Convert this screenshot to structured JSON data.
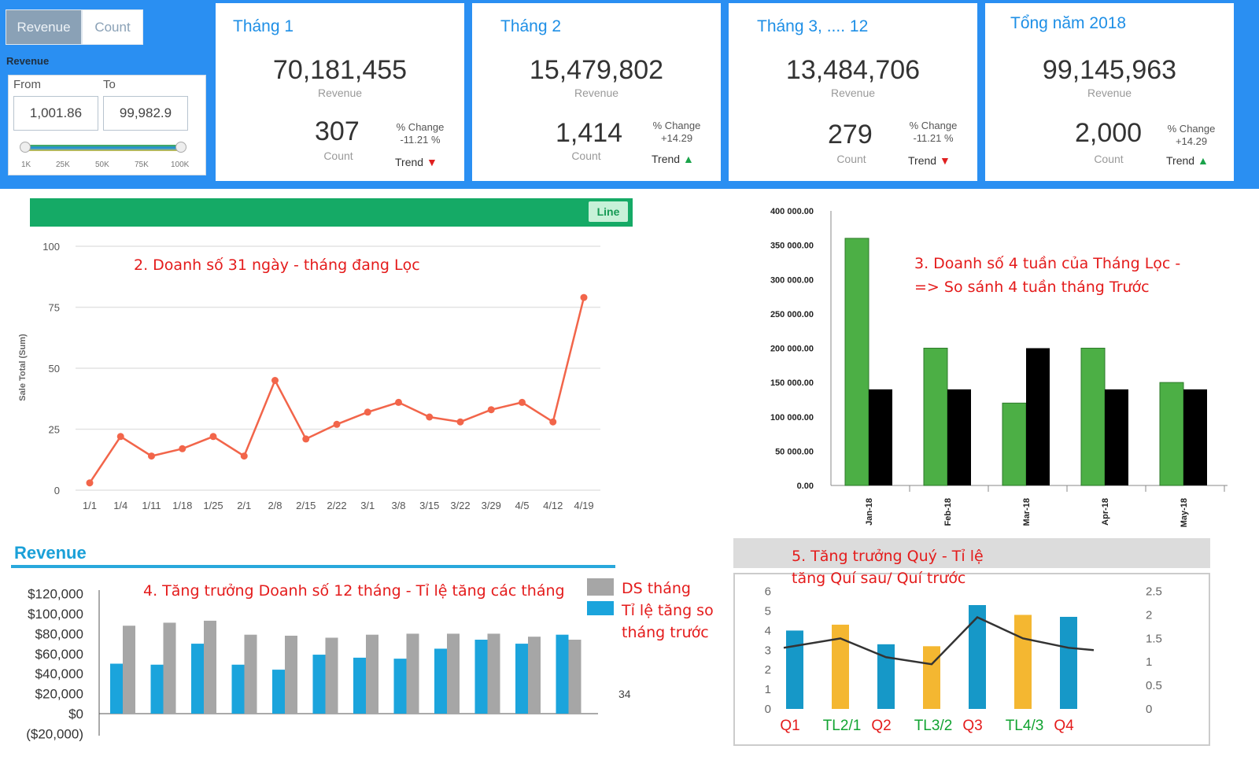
{
  "filter": {
    "toggle_revenue": "Revenue",
    "toggle_count": "Count",
    "section_label": "Revenue",
    "from_label": "From",
    "to_label": "To",
    "from_value": "1,001.86",
    "to_value": "99,982.9",
    "slider_ticks": [
      "1K",
      "25K",
      "50K",
      "75K",
      "100K"
    ]
  },
  "kpis": [
    {
      "title": "Tháng 1",
      "revenue": "70,181,455",
      "revenue_label": "Revenue",
      "count": "307",
      "count_label": "Count",
      "change_label": "% Change",
      "change_value": "-11.21 %",
      "trend_label": "Trend",
      "trend": "down"
    },
    {
      "title": "Tháng 2",
      "revenue": "15,479,802",
      "revenue_label": "Revenue",
      "count": "1,414",
      "count_label": "Count",
      "change_label": "% Change",
      "change_value": "+14.29",
      "trend_label": "Trend",
      "trend": "up"
    },
    {
      "title": "Tháng 3, .... 12",
      "revenue": "13,484,706",
      "revenue_label": "Revenue",
      "count": "279",
      "count_label": "Count",
      "change_label": "% Change",
      "change_value": "-11.21 %",
      "trend_label": "Trend",
      "trend": "down"
    },
    {
      "title": "Tổng năm 2018",
      "revenue": "99,145,963",
      "revenue_label": "Revenue",
      "count": "2,000",
      "count_label": "Count",
      "change_label": "% Change",
      "change_value": "+14.29",
      "trend_label": "Trend",
      "trend": "up"
    }
  ],
  "colors": {
    "banner": "#2a8ff2",
    "kpi_title": "#1e8fe6",
    "chart2_header": "#15aa66",
    "line": "#f2654a",
    "bar_green": "#4caf45",
    "bar_black": "#000000",
    "rev_gray": "#a6a6a6",
    "rev_blue": "#1ba4dc",
    "q_blue": "#1698c8",
    "q_orange": "#f4b731",
    "annotation_red": "#e41b1b",
    "annotation_green": "#11a331"
  },
  "chart_data": [
    {
      "id": "chart2",
      "type": "line",
      "header_button": "Line",
      "annotation": "2. Doanh số 31 ngày - tháng đang Lọc",
      "ylabel": "Sale Total (Sum)",
      "ylim": [
        0,
        100
      ],
      "yticks": [
        "0",
        "25",
        "50",
        "75",
        "100"
      ],
      "x": [
        "1/1",
        "1/4",
        "1/11",
        "1/18",
        "1/25",
        "2/1",
        "2/8",
        "2/15",
        "2/22",
        "3/1",
        "3/8",
        "3/15",
        "3/22",
        "3/29",
        "4/5",
        "4/12",
        "4/19"
      ],
      "series": [
        {
          "values": [
            3,
            22,
            14,
            17,
            22,
            14,
            45,
            21,
            27,
            32,
            36,
            30,
            28,
            33,
            36,
            28,
            79
          ]
        }
      ]
    },
    {
      "id": "chart3",
      "type": "bar",
      "annotation_line1": "3. Doanh số 4 tuần của Tháng Lọc -",
      "annotation_line2": "=> So sánh 4 tuần tháng Trước",
      "ylim": [
        0,
        400000
      ],
      "yticks": [
        "0.00",
        "50 000.00",
        "100 000.00",
        "150 000.00",
        "200 000.00",
        "250 000.00",
        "300 000.00",
        "350 000.00",
        "400 000.00"
      ],
      "categories": [
        "Jan-18",
        "Feb-18",
        "Mar-18",
        "Apr-18",
        "May-18"
      ],
      "series": [
        {
          "values": [
            360000,
            200000,
            120000,
            200000,
            150000
          ]
        },
        {
          "values": [
            140000,
            140000,
            200000,
            140000,
            140000
          ]
        }
      ]
    },
    {
      "id": "chart4",
      "type": "bar",
      "title": "Revenue",
      "annotation": "4. Tăng trưởng Doanh số 12 tháng - Tỉ lệ tăng các tháng",
      "yticks": [
        "($20,000)",
        "$0",
        "$20,000",
        "$40,000",
        "$60,000",
        "$80,000",
        "$100,000",
        "$120,000"
      ],
      "ylim": [
        -20000,
        120000
      ],
      "legend": [
        "DS tháng",
        "Tỉ lệ tăng so tháng trước"
      ],
      "stray_label": "34",
      "series": [
        {
          "name": "Tỉ lệ tăng so tháng trước",
          "values": [
            50000,
            49000,
            70000,
            49000,
            44000,
            59000,
            56000,
            55000,
            65000,
            74000,
            70000,
            79000
          ]
        },
        {
          "name": "DS tháng",
          "values": [
            88000,
            91000,
            93000,
            79000,
            78000,
            76000,
            79000,
            80000,
            80000,
            80000,
            77000,
            74000
          ]
        }
      ]
    },
    {
      "id": "chart5",
      "type": "bar",
      "annotation_line1": "5. Tăng trưởng Quý - Tỉ lệ",
      "annotation_line2": "tăng Quí sau/ Quí trước",
      "ylim_left": [
        0,
        6
      ],
      "ylim_right": [
        0,
        2.5
      ],
      "yticks_left": [
        "0",
        "1",
        "2",
        "3",
        "4",
        "5",
        "6"
      ],
      "yticks_right": [
        "0",
        "0.5",
        "1",
        "1.5",
        "2",
        "2.5"
      ],
      "categories": [
        "Q1",
        "TL2/1",
        "Q2",
        "TL3/2",
        "Q3",
        "TL4/3",
        "Q4"
      ],
      "category_colors": [
        "red",
        "green",
        "red",
        "green",
        "red",
        "green",
        "red"
      ],
      "bars": [
        4,
        4.3,
        3.3,
        3.2,
        5.3,
        4.8,
        4.7
      ],
      "bar_types": [
        "blue",
        "orange",
        "blue",
        "orange",
        "blue",
        "orange",
        "blue"
      ],
      "line": [
        1.3,
        1.5,
        1.1,
        0.95,
        1.95,
        1.5,
        1.3
      ]
    }
  ]
}
